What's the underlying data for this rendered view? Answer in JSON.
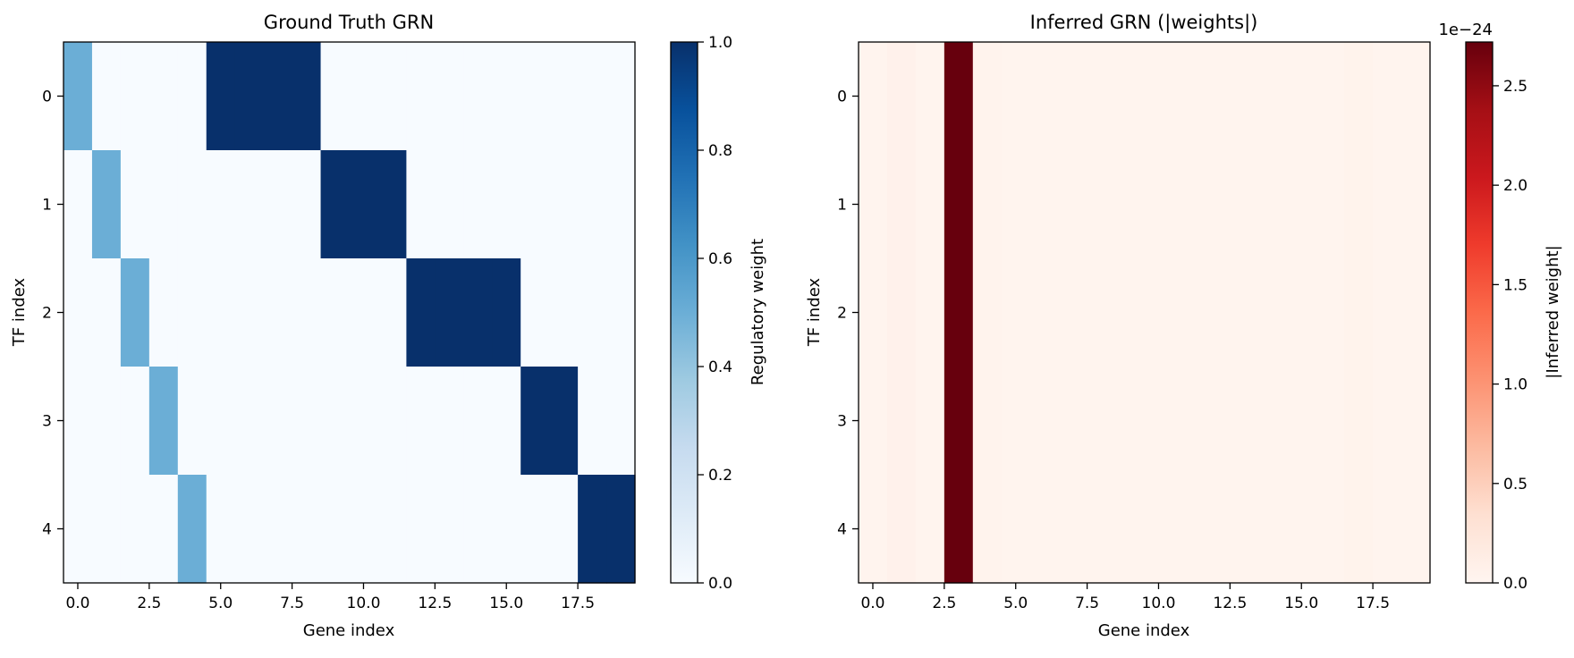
{
  "chart_data": [
    {
      "type": "heatmap",
      "title": "Ground Truth GRN",
      "xlabel": "Gene index",
      "ylabel": "TF index",
      "colormap": "Blues",
      "colorbar_label": "Regulatory weight",
      "colorbar_ticks": [
        "0.0",
        "0.2",
        "0.4",
        "0.6",
        "0.8",
        "1.0"
      ],
      "colorbar_offset": "",
      "vmin": 0,
      "vmax": 1,
      "xlim": [
        -0.5,
        19.5
      ],
      "x_ticks": [
        "0.0",
        "2.5",
        "5.0",
        "7.5",
        "10.0",
        "12.5",
        "15.0",
        "17.5"
      ],
      "y_ticks": [
        "0",
        "1",
        "2",
        "3",
        "4"
      ],
      "values": [
        [
          0.5,
          0,
          0,
          0,
          0,
          1,
          1,
          1,
          1,
          0,
          0,
          0,
          0,
          0,
          0,
          0,
          0,
          0,
          0,
          0
        ],
        [
          0,
          0.5,
          0,
          0,
          0,
          0,
          0,
          0,
          0,
          1,
          1,
          1,
          0,
          0,
          0,
          0,
          0,
          0,
          0,
          0
        ],
        [
          0,
          0,
          0.5,
          0,
          0,
          0,
          0,
          0,
          0,
          0,
          0,
          0,
          1,
          1,
          1,
          1,
          0,
          0,
          0,
          0
        ],
        [
          0,
          0,
          0,
          0.5,
          0,
          0,
          0,
          0,
          0,
          0,
          0,
          0,
          0,
          0,
          0,
          0,
          1,
          1,
          0,
          0
        ],
        [
          0,
          0,
          0,
          0,
          0.5,
          0,
          0,
          0,
          0,
          0,
          0,
          0,
          0,
          0,
          0,
          0,
          0,
          0,
          1,
          1
        ]
      ]
    },
    {
      "type": "heatmap",
      "title": "Inferred GRN (|weights|)",
      "xlabel": "Gene index",
      "ylabel": "TF index",
      "colormap": "Reds",
      "colorbar_label": "|Inferred weight|",
      "colorbar_ticks": [
        "0.0",
        "0.5",
        "1.0",
        "1.5",
        "2.0",
        "2.5"
      ],
      "colorbar_offset": "1e−24",
      "vmin": 0,
      "vmax": 2.72,
      "xlim": [
        -0.5,
        19.5
      ],
      "x_ticks": [
        "0.0",
        "2.5",
        "5.0",
        "7.5",
        "10.0",
        "12.5",
        "15.0",
        "17.5"
      ],
      "y_ticks": [
        "0",
        "1",
        "2",
        "3",
        "4"
      ],
      "values": [
        [
          0.02,
          0.06,
          0.02,
          2.72,
          0.03,
          0.02,
          0.02,
          0.02,
          0.02,
          0.02,
          0.02,
          0.02,
          0.02,
          0.02,
          0.02,
          0.02,
          0.02,
          0.04,
          0.02,
          0.02
        ],
        [
          0.02,
          0.06,
          0.02,
          2.72,
          0.03,
          0.02,
          0.02,
          0.02,
          0.02,
          0.02,
          0.02,
          0.02,
          0.02,
          0.02,
          0.02,
          0.02,
          0.02,
          0.04,
          0.02,
          0.02
        ],
        [
          0.02,
          0.06,
          0.02,
          2.72,
          0.03,
          0.02,
          0.02,
          0.02,
          0.02,
          0.02,
          0.02,
          0.02,
          0.02,
          0.02,
          0.02,
          0.02,
          0.02,
          0.04,
          0.02,
          0.02
        ],
        [
          0.02,
          0.06,
          0.02,
          2.72,
          0.03,
          0.02,
          0.02,
          0.02,
          0.02,
          0.02,
          0.02,
          0.02,
          0.02,
          0.02,
          0.02,
          0.02,
          0.02,
          0.04,
          0.02,
          0.02
        ],
        [
          0.02,
          0.06,
          0.02,
          2.72,
          0.03,
          0.02,
          0.02,
          0.02,
          0.02,
          0.02,
          0.02,
          0.02,
          0.02,
          0.02,
          0.02,
          0.02,
          0.02,
          0.04,
          0.02,
          0.02
        ]
      ]
    }
  ]
}
